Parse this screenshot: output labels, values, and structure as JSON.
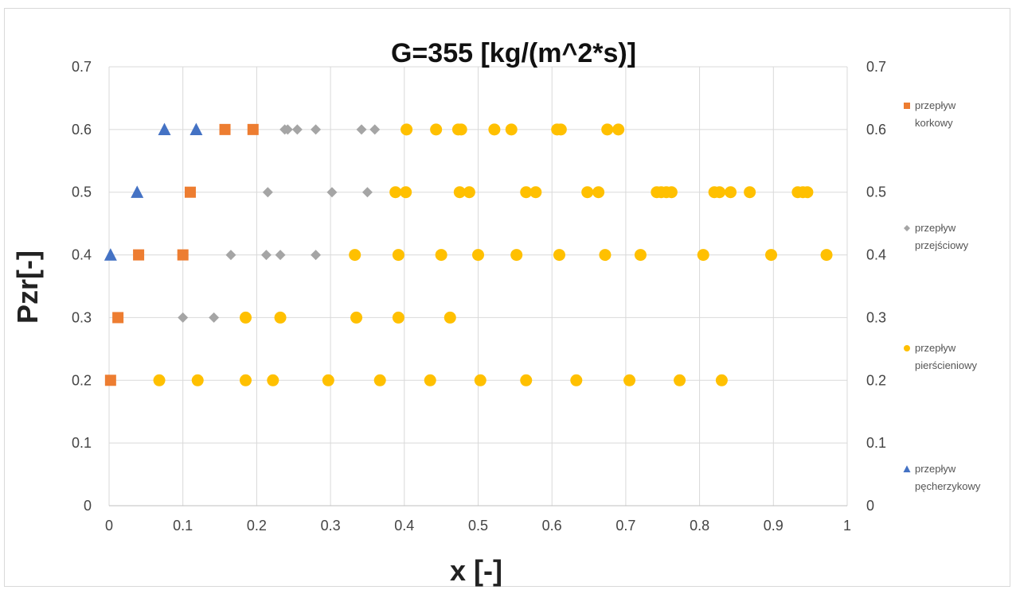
{
  "chart_data": {
    "type": "scatter",
    "title": "G=355 [kg/(m^2*s)]",
    "xlabel": "x [-]",
    "ylabel": "Pzr[-]",
    "xlim": [
      0,
      1
    ],
    "ylim": [
      0,
      0.7
    ],
    "x_ticks": [
      "0",
      "0.1",
      "0.2",
      "0.3",
      "0.4",
      "0.5",
      "0.6",
      "0.7",
      "0.8",
      "0.9",
      "1"
    ],
    "y_ticks": [
      "0",
      "0.1",
      "0.2",
      "0.3",
      "0.4",
      "0.5",
      "0.6",
      "0.7"
    ],
    "secondary_y_ticks": [
      "0",
      "0.1",
      "0.2",
      "0.3",
      "0.4",
      "0.5",
      "0.6",
      "0.7"
    ],
    "grid": true,
    "legend_position": "right",
    "series": [
      {
        "name": "przepływ korkowy",
        "legend_lines": [
          "przepływ",
          "korkowy"
        ],
        "marker": "square",
        "color": "#ed7d31",
        "points": [
          [
            0.157,
            0.6
          ],
          [
            0.195,
            0.6
          ],
          [
            0.11,
            0.5
          ],
          [
            0.04,
            0.4
          ],
          [
            0.1,
            0.4
          ],
          [
            0.012,
            0.3
          ],
          [
            0.002,
            0.2
          ]
        ]
      },
      {
        "name": "przepływ przejściowy",
        "legend_lines": [
          "przepływ",
          "przejściowy"
        ],
        "marker": "diamond",
        "color": "#a5a5a5",
        "points": [
          [
            0.238,
            0.6
          ],
          [
            0.242,
            0.6
          ],
          [
            0.255,
            0.6
          ],
          [
            0.28,
            0.6
          ],
          [
            0.342,
            0.6
          ],
          [
            0.36,
            0.6
          ],
          [
            0.215,
            0.5
          ],
          [
            0.302,
            0.5
          ],
          [
            0.35,
            0.5
          ],
          [
            0.165,
            0.4
          ],
          [
            0.213,
            0.4
          ],
          [
            0.232,
            0.4
          ],
          [
            0.28,
            0.4
          ],
          [
            0.1,
            0.3
          ],
          [
            0.142,
            0.3
          ]
        ]
      },
      {
        "name": "przepływ pierścieniowy",
        "legend_lines": [
          "przepływ",
          "pierścieniowy"
        ],
        "marker": "circle",
        "color": "#ffc000",
        "points": [
          [
            0.403,
            0.6
          ],
          [
            0.443,
            0.6
          ],
          [
            0.473,
            0.6
          ],
          [
            0.477,
            0.6
          ],
          [
            0.522,
            0.6
          ],
          [
            0.545,
            0.6
          ],
          [
            0.607,
            0.6
          ],
          [
            0.612,
            0.6
          ],
          [
            0.675,
            0.6
          ],
          [
            0.69,
            0.6
          ],
          [
            0.388,
            0.5
          ],
          [
            0.402,
            0.5
          ],
          [
            0.475,
            0.5
          ],
          [
            0.488,
            0.5
          ],
          [
            0.565,
            0.5
          ],
          [
            0.578,
            0.5
          ],
          [
            0.648,
            0.5
          ],
          [
            0.663,
            0.5
          ],
          [
            0.742,
            0.5
          ],
          [
            0.748,
            0.5
          ],
          [
            0.755,
            0.5
          ],
          [
            0.762,
            0.5
          ],
          [
            0.82,
            0.5
          ],
          [
            0.827,
            0.5
          ],
          [
            0.842,
            0.5
          ],
          [
            0.868,
            0.5
          ],
          [
            0.933,
            0.5
          ],
          [
            0.94,
            0.5
          ],
          [
            0.946,
            0.5
          ],
          [
            0.333,
            0.4
          ],
          [
            0.392,
            0.4
          ],
          [
            0.45,
            0.4
          ],
          [
            0.5,
            0.4
          ],
          [
            0.552,
            0.4
          ],
          [
            0.61,
            0.4
          ],
          [
            0.672,
            0.4
          ],
          [
            0.72,
            0.4
          ],
          [
            0.805,
            0.4
          ],
          [
            0.897,
            0.4
          ],
          [
            0.972,
            0.4
          ],
          [
            0.185,
            0.3
          ],
          [
            0.232,
            0.3
          ],
          [
            0.335,
            0.3
          ],
          [
            0.392,
            0.3
          ],
          [
            0.462,
            0.3
          ],
          [
            0.068,
            0.2
          ],
          [
            0.12,
            0.2
          ],
          [
            0.185,
            0.2
          ],
          [
            0.222,
            0.2
          ],
          [
            0.297,
            0.2
          ],
          [
            0.367,
            0.2
          ],
          [
            0.435,
            0.2
          ],
          [
            0.503,
            0.2
          ],
          [
            0.565,
            0.2
          ],
          [
            0.633,
            0.2
          ],
          [
            0.705,
            0.2
          ],
          [
            0.773,
            0.2
          ],
          [
            0.83,
            0.2
          ]
        ]
      },
      {
        "name": "przepływ pęcherzykowy",
        "legend_lines": [
          "przepływ",
          "pęcherzykowy"
        ],
        "marker": "triangle",
        "color": "#4472c4",
        "points": [
          [
            0.075,
            0.6
          ],
          [
            0.118,
            0.6
          ],
          [
            0.038,
            0.5
          ],
          [
            0.002,
            0.4
          ]
        ]
      }
    ]
  }
}
